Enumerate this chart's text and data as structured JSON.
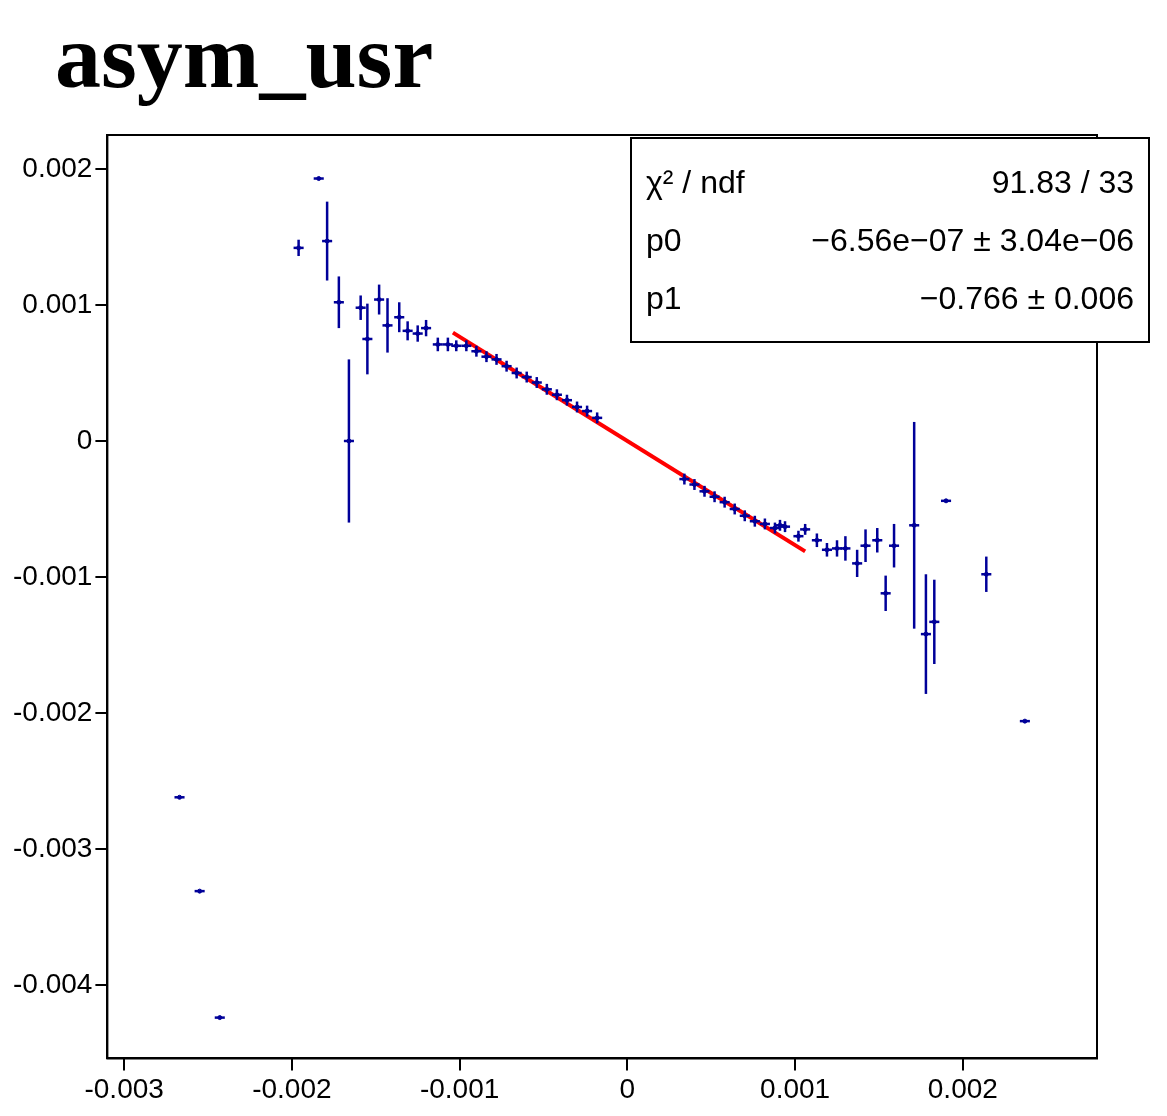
{
  "chart_data": {
    "type": "scatter",
    "title": "asym_usr",
    "annotations": [
      "χ² / ndf",
      "91.83 / 33",
      "p0",
      "−6.56e−07 ± 3.04e−06",
      "p1",
      "−0.766 ± 0.006"
    ],
    "xlim": [
      -0.0031,
      0.0028
    ],
    "ylim": [
      -0.00454,
      0.00225
    ],
    "xticks": [
      -0.003,
      -0.002,
      -0.001,
      0,
      0.001,
      0.002
    ],
    "yticks": [
      -0.004,
      -0.003,
      -0.002,
      -0.001,
      0,
      0.001,
      0.002
    ],
    "series": [
      {
        "type": "scatter",
        "color": "#000099",
        "marker": "circle",
        "x": [
          -0.00267,
          -0.00255,
          -0.00243,
          -0.00196,
          -0.00184,
          -0.00179,
          -0.00172,
          -0.00166,
          -0.00159,
          -0.00155,
          -0.00148,
          -0.00143,
          -0.00136,
          -0.00131,
          -0.00125,
          -0.0012,
          -0.00113,
          -0.00107,
          -0.00102,
          -0.00096,
          -0.0009,
          -0.00084,
          -0.00078,
          -0.00072,
          -0.00066,
          -0.0006,
          -0.00054,
          -0.00048,
          -0.00042,
          -0.00036,
          -0.0003,
          -0.00024,
          -0.00018,
          0.00034,
          0.0004,
          0.00046,
          0.00052,
          0.00058,
          0.00064,
          0.0007,
          0.00076,
          0.00082,
          0.00088,
          0.00091,
          0.00094,
          0.00102,
          0.00106,
          0.00113,
          0.00119,
          0.00125,
          0.0013,
          0.00137,
          0.00142,
          0.00149,
          0.00154,
          0.00159,
          0.00171,
          0.00178,
          0.00183,
          0.0019,
          0.00214,
          0.00237
        ],
        "values": [
          -0.00262,
          -0.00331,
          -0.00424,
          0.00142,
          0.00193,
          0.00147,
          0.00102,
          0,
          0.00098,
          0.00075,
          0.00104,
          0.00085,
          0.00091,
          0.00081,
          0.00079,
          0.00083,
          0.00071,
          0.00071,
          0.0007,
          0.0007,
          0.00066,
          0.00062,
          0.0006,
          0.00055,
          0.0005,
          0.00047,
          0.00043,
          0.00038,
          0.00034,
          0.0003,
          0.00025,
          0.00022,
          0.00017,
          -0.00028,
          -0.00032,
          -0.00037,
          -0.00041,
          -0.00045,
          -0.0005,
          -0.00055,
          -0.00059,
          -0.00061,
          -0.00064,
          -0.00062,
          -0.00063,
          -0.0007,
          -0.00065,
          -0.00073,
          -0.0008,
          -0.00079,
          -0.00079,
          -0.0009,
          -0.00077,
          -0.00073,
          -0.00112,
          -0.00077,
          -0.00062,
          -0.00142,
          -0.00133,
          -0.00044,
          -0.00098,
          -0.00206
        ],
        "errors": [
          0,
          0,
          0,
          6e-05,
          0,
          0.00029,
          0.00019,
          0.0006,
          9e-05,
          0.00026,
          0.00011,
          0.0002,
          0.00011,
          7e-05,
          6e-05,
          6e-05,
          5e-05,
          5e-05,
          4e-05,
          4e-05,
          4e-05,
          4e-05,
          4e-05,
          4e-05,
          4e-05,
          4e-05,
          4e-05,
          4e-05,
          4e-05,
          4e-05,
          4e-05,
          4e-05,
          4e-05,
          4e-05,
          4e-05,
          4e-05,
          4e-05,
          4e-05,
          4e-05,
          4e-05,
          4e-05,
          4e-05,
          4e-05,
          4e-05,
          4e-05,
          4e-05,
          4e-05,
          5e-05,
          5e-05,
          6e-05,
          9e-05,
          0.0001,
          0.00012,
          9e-05,
          0.00013,
          0.00016,
          0.00076,
          0.00044,
          0.00031,
          0,
          0.00013,
          0
        ],
        "xerrors": [
          3e-05,
          3e-05,
          3e-05,
          3e-05,
          3e-05,
          3e-05,
          3e-05,
          3e-05,
          3e-05,
          3e-05,
          3e-05,
          3e-05,
          3e-05,
          3e-05,
          3e-05,
          3e-05,
          3e-05,
          3e-05,
          3e-05,
          3e-05,
          3e-05,
          3e-05,
          3e-05,
          3e-05,
          3e-05,
          3e-05,
          3e-05,
          3e-05,
          3e-05,
          3e-05,
          3e-05,
          3e-05,
          3e-05,
          3e-05,
          3e-05,
          3e-05,
          3e-05,
          3e-05,
          3e-05,
          3e-05,
          3e-05,
          3e-05,
          3e-05,
          3e-05,
          3e-05,
          3e-05,
          3e-05,
          3e-05,
          3e-05,
          3e-05,
          3e-05,
          3e-05,
          3e-05,
          3e-05,
          3e-05,
          3e-05,
          3e-05,
          3e-05,
          3e-05,
          3e-05,
          3e-05,
          3e-05
        ]
      },
      {
        "type": "line",
        "color": "#ff0000",
        "x": [
          -0.00104,
          0.00106
        ],
        "values": [
          0.000797,
          -0.000812
        ]
      }
    ]
  }
}
